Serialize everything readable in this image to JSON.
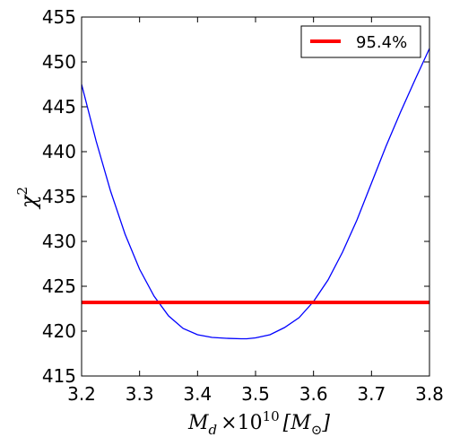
{
  "chart_data": {
    "type": "line",
    "xlabel": {
      "main": "M",
      "sub": "d",
      "times": "×10",
      "exp": "10",
      "unit_open": "[M",
      "unit_sub": "⊙",
      "unit_close": "]"
    },
    "ylabel": {
      "main": "χ",
      "exp": "2"
    },
    "xlim": [
      3.2,
      3.8
    ],
    "ylim": [
      415,
      455
    ],
    "x_ticks": [
      "3.2",
      "3.3",
      "3.4",
      "3.5",
      "3.6",
      "3.7",
      "3.8"
    ],
    "y_ticks": [
      "415",
      "420",
      "425",
      "430",
      "435",
      "440",
      "445",
      "450",
      "455"
    ],
    "grid": false,
    "legend_position": "top-right",
    "series": [
      {
        "color": "#0000ff",
        "points": [
          [
            3.2,
            447.5
          ],
          [
            3.225,
            441.2
          ],
          [
            3.25,
            435.6
          ],
          [
            3.275,
            430.8
          ],
          [
            3.3,
            426.9
          ],
          [
            3.325,
            423.9
          ],
          [
            3.35,
            421.7
          ],
          [
            3.375,
            420.3
          ],
          [
            3.4,
            419.6
          ],
          [
            3.425,
            419.3
          ],
          [
            3.45,
            419.2
          ],
          [
            3.475,
            419.15
          ],
          [
            3.485,
            419.15
          ],
          [
            3.5,
            419.25
          ],
          [
            3.525,
            419.6
          ],
          [
            3.55,
            420.4
          ],
          [
            3.575,
            421.5
          ],
          [
            3.6,
            423.3
          ],
          [
            3.625,
            425.7
          ],
          [
            3.65,
            428.8
          ],
          [
            3.675,
            432.4
          ],
          [
            3.7,
            436.5
          ],
          [
            3.725,
            440.6
          ],
          [
            3.75,
            444.4
          ],
          [
            3.775,
            448.0
          ],
          [
            3.8,
            451.5
          ]
        ]
      },
      {
        "name": "95.4%",
        "color": "#ff0000",
        "type": "hline",
        "y": 423.2
      }
    ]
  }
}
